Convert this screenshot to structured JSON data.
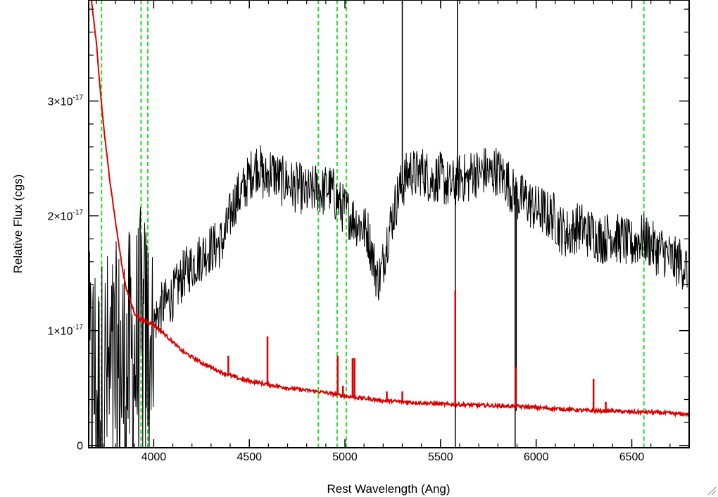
{
  "chart_data": {
    "type": "line",
    "xlabel": "Rest Wavelength (Ang)",
    "ylabel": "Relative Flux (cgs)",
    "xlim": [
      3660,
      6800
    ],
    "ylim": [
      -0.02,
      3.88
    ],
    "y_scale_note": "values in units of 1e-17",
    "x_ticks": [
      {
        "value": 4000,
        "label": "4000"
      },
      {
        "value": 4500,
        "label": "4500"
      },
      {
        "value": 5000,
        "label": "5000"
      },
      {
        "value": 5500,
        "label": "5500"
      },
      {
        "value": 6000,
        "label": "6000"
      },
      {
        "value": 6500,
        "label": "6500"
      }
    ],
    "y_ticks": [
      {
        "value": 0,
        "label": "0",
        "exp": ""
      },
      {
        "value": 1,
        "label": "1×10",
        "exp": "-17"
      },
      {
        "value": 2,
        "label": "2×10",
        "exp": "-17"
      },
      {
        "value": 3,
        "label": "3×10",
        "exp": "-17"
      }
    ],
    "vertical_lines": [
      3727,
      3934,
      3969,
      4861,
      4959,
      5007,
      6563
    ],
    "series": [
      {
        "color": "#000000",
        "x": [
          3670,
          3690,
          3710,
          3730,
          3750,
          3770,
          3790,
          3810,
          3830,
          3850,
          3870,
          3890,
          3910,
          3930,
          3950,
          3970,
          3990,
          4010,
          4040,
          4070,
          4100,
          4130,
          4160,
          4190,
          4220,
          4250,
          4280,
          4310,
          4340,
          4370,
          4400,
          4430,
          4460,
          4490,
          4520,
          4550,
          4580,
          4610,
          4640,
          4670,
          4700,
          4730,
          4760,
          4790,
          4820,
          4850,
          4880,
          4910,
          4940,
          4970,
          5000,
          5030,
          5060,
          5090,
          5120,
          5150,
          5170,
          5190,
          5220,
          5250,
          5280,
          5310,
          5340,
          5370,
          5400,
          5430,
          5460,
          5490,
          5520,
          5550,
          5580,
          5610,
          5640,
          5670,
          5700,
          5730,
          5760,
          5790,
          5820,
          5850,
          5880,
          5910,
          5940,
          5970,
          6000,
          6030,
          6060,
          6090,
          6120,
          6150,
          6180,
          6210,
          6240,
          6270,
          6300,
          6330,
          6360,
          6390,
          6420,
          6450,
          6480,
          6510,
          6540,
          6570,
          6600,
          6630,
          6660,
          6690,
          6720,
          6750,
          6780
        ],
        "y": [
          0.5,
          0.6,
          0.4,
          0.5,
          0.6,
          0.5,
          0.55,
          0.6,
          0.65,
          0.6,
          0.7,
          0.7,
          0.8,
          0.9,
          0.85,
          0.9,
          1.0,
          1.1,
          1.2,
          1.25,
          1.3,
          1.4,
          1.5,
          1.55,
          1.6,
          1.65,
          1.7,
          1.72,
          1.75,
          1.8,
          2.0,
          2.15,
          2.2,
          2.3,
          2.4,
          2.45,
          2.3,
          2.4,
          2.35,
          2.3,
          2.3,
          2.25,
          2.25,
          2.2,
          2.2,
          2.25,
          2.2,
          2.25,
          2.2,
          2.1,
          2.05,
          2.0,
          1.95,
          1.9,
          1.85,
          1.6,
          1.45,
          1.5,
          1.8,
          2.0,
          2.2,
          2.3,
          2.4,
          2.35,
          2.4,
          2.35,
          2.3,
          2.35,
          2.3,
          2.25,
          2.3,
          2.35,
          2.3,
          2.4,
          2.35,
          2.4,
          2.35,
          2.4,
          2.35,
          2.3,
          2.2,
          2.15,
          2.15,
          2.1,
          2.05,
          2.05,
          2.0,
          2.0,
          1.9,
          1.85,
          1.85,
          1.9,
          1.9,
          1.85,
          1.85,
          1.8,
          1.8,
          1.85,
          1.8,
          1.8,
          1.75,
          1.75,
          1.8,
          1.8,
          1.75,
          1.7,
          1.7,
          1.65,
          1.6,
          1.6,
          1.55
        ],
        "noise_amplitude": 0.16,
        "spikes": [
          {
            "x": 5300,
            "y": 3.88
          },
          {
            "x": 5577,
            "y": -0.02
          },
          {
            "x": 5588,
            "y": 3.88
          },
          {
            "x": 5890,
            "y": -0.02
          },
          {
            "x": 5896,
            "y": 0.3
          }
        ]
      },
      {
        "color": "#dd0000",
        "x": [
          3670,
          3700,
          3720,
          3740,
          3760,
          3780,
          3800,
          3820,
          3840,
          3860,
          3880,
          3900,
          3930,
          3960,
          4000,
          4050,
          4100,
          4150,
          4200,
          4250,
          4300,
          4350,
          4400,
          4450,
          4500,
          4600,
          4700,
          4800,
          4900,
          5000,
          5100,
          5200,
          5300,
          5400,
          5500,
          5600,
          5700,
          5800,
          5900,
          6000,
          6100,
          6200,
          6300,
          6400,
          6500,
          6600,
          6700,
          6800
        ],
        "y": [
          3.95,
          3.5,
          3.1,
          2.75,
          2.45,
          2.2,
          1.95,
          1.72,
          1.5,
          1.35,
          1.25,
          1.15,
          1.1,
          1.08,
          1.05,
          0.98,
          0.9,
          0.82,
          0.77,
          0.72,
          0.68,
          0.64,
          0.61,
          0.58,
          0.56,
          0.53,
          0.5,
          0.48,
          0.46,
          0.43,
          0.41,
          0.39,
          0.38,
          0.37,
          0.36,
          0.355,
          0.35,
          0.345,
          0.34,
          0.33,
          0.32,
          0.31,
          0.3,
          0.3,
          0.29,
          0.29,
          0.28,
          0.27
        ],
        "lines": [
          {
            "x": 4390,
            "y": 0.78
          },
          {
            "x": 4595,
            "y": 0.95
          },
          {
            "x": 4962,
            "y": 0.78
          },
          {
            "x": 4990,
            "y": 0.52
          },
          {
            "x": 5040,
            "y": 0.76
          },
          {
            "x": 5050,
            "y": 0.76
          },
          {
            "x": 5219,
            "y": 0.47
          },
          {
            "x": 5300,
            "y": 0.47
          },
          {
            "x": 5577,
            "y": 1.35
          },
          {
            "x": 5893,
            "y": 0.68
          },
          {
            "x": 6300,
            "y": 0.58
          },
          {
            "x": 6364,
            "y": 0.38
          }
        ]
      }
    ]
  }
}
